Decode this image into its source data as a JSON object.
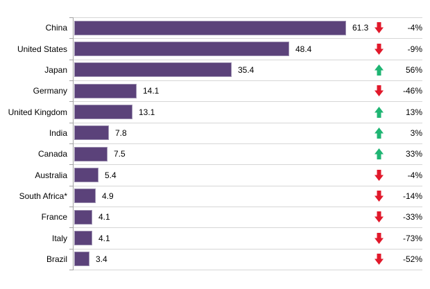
{
  "chart_data": {
    "type": "bar",
    "orientation": "horizontal",
    "title": "",
    "xlabel": "",
    "ylabel": "",
    "xlim": [
      0,
      78
    ],
    "grid": "horizontal row separators",
    "legend": "none",
    "rows": [
      {
        "label": "China",
        "value": 61.3,
        "value_label": "61.3",
        "direction": "down",
        "change": "-4%"
      },
      {
        "label": "United States",
        "value": 48.4,
        "value_label": "48.4",
        "direction": "down",
        "change": "-9%"
      },
      {
        "label": "Japan",
        "value": 35.4,
        "value_label": "35.4",
        "direction": "up",
        "change": "56%"
      },
      {
        "label": "Germany",
        "value": 14.1,
        "value_label": "14.1",
        "direction": "down",
        "change": "-46%"
      },
      {
        "label": "United Kingdom",
        "value": 13.1,
        "value_label": "13.1",
        "direction": "up",
        "change": "13%"
      },
      {
        "label": "India",
        "value": 7.8,
        "value_label": "7.8",
        "direction": "up",
        "change": "3%"
      },
      {
        "label": "Canada",
        "value": 7.5,
        "value_label": "7.5",
        "direction": "up",
        "change": "33%"
      },
      {
        "label": "Australia",
        "value": 5.4,
        "value_label": "5.4",
        "direction": "down",
        "change": "-4%"
      },
      {
        "label": "South Africa*",
        "value": 4.9,
        "value_label": "4.9",
        "direction": "down",
        "change": "-14%"
      },
      {
        "label": "France",
        "value": 4.1,
        "value_label": "4.1",
        "direction": "down",
        "change": "-33%"
      },
      {
        "label": "Italy",
        "value": 4.1,
        "value_label": "4.1",
        "direction": "down",
        "change": "-73%"
      },
      {
        "label": "Brazil",
        "value": 3.4,
        "value_label": "3.4",
        "direction": "down",
        "change": "-52%"
      }
    ],
    "colors": {
      "bar": "#5B427A",
      "bar_border": "#9C90B0",
      "up_arrow": "#1FB573",
      "down_arrow": "#E1192B",
      "gridline": "#D6D6D6",
      "axis": "#A3A3A3",
      "text": "#000000",
      "background": "#FFFFFF"
    }
  }
}
